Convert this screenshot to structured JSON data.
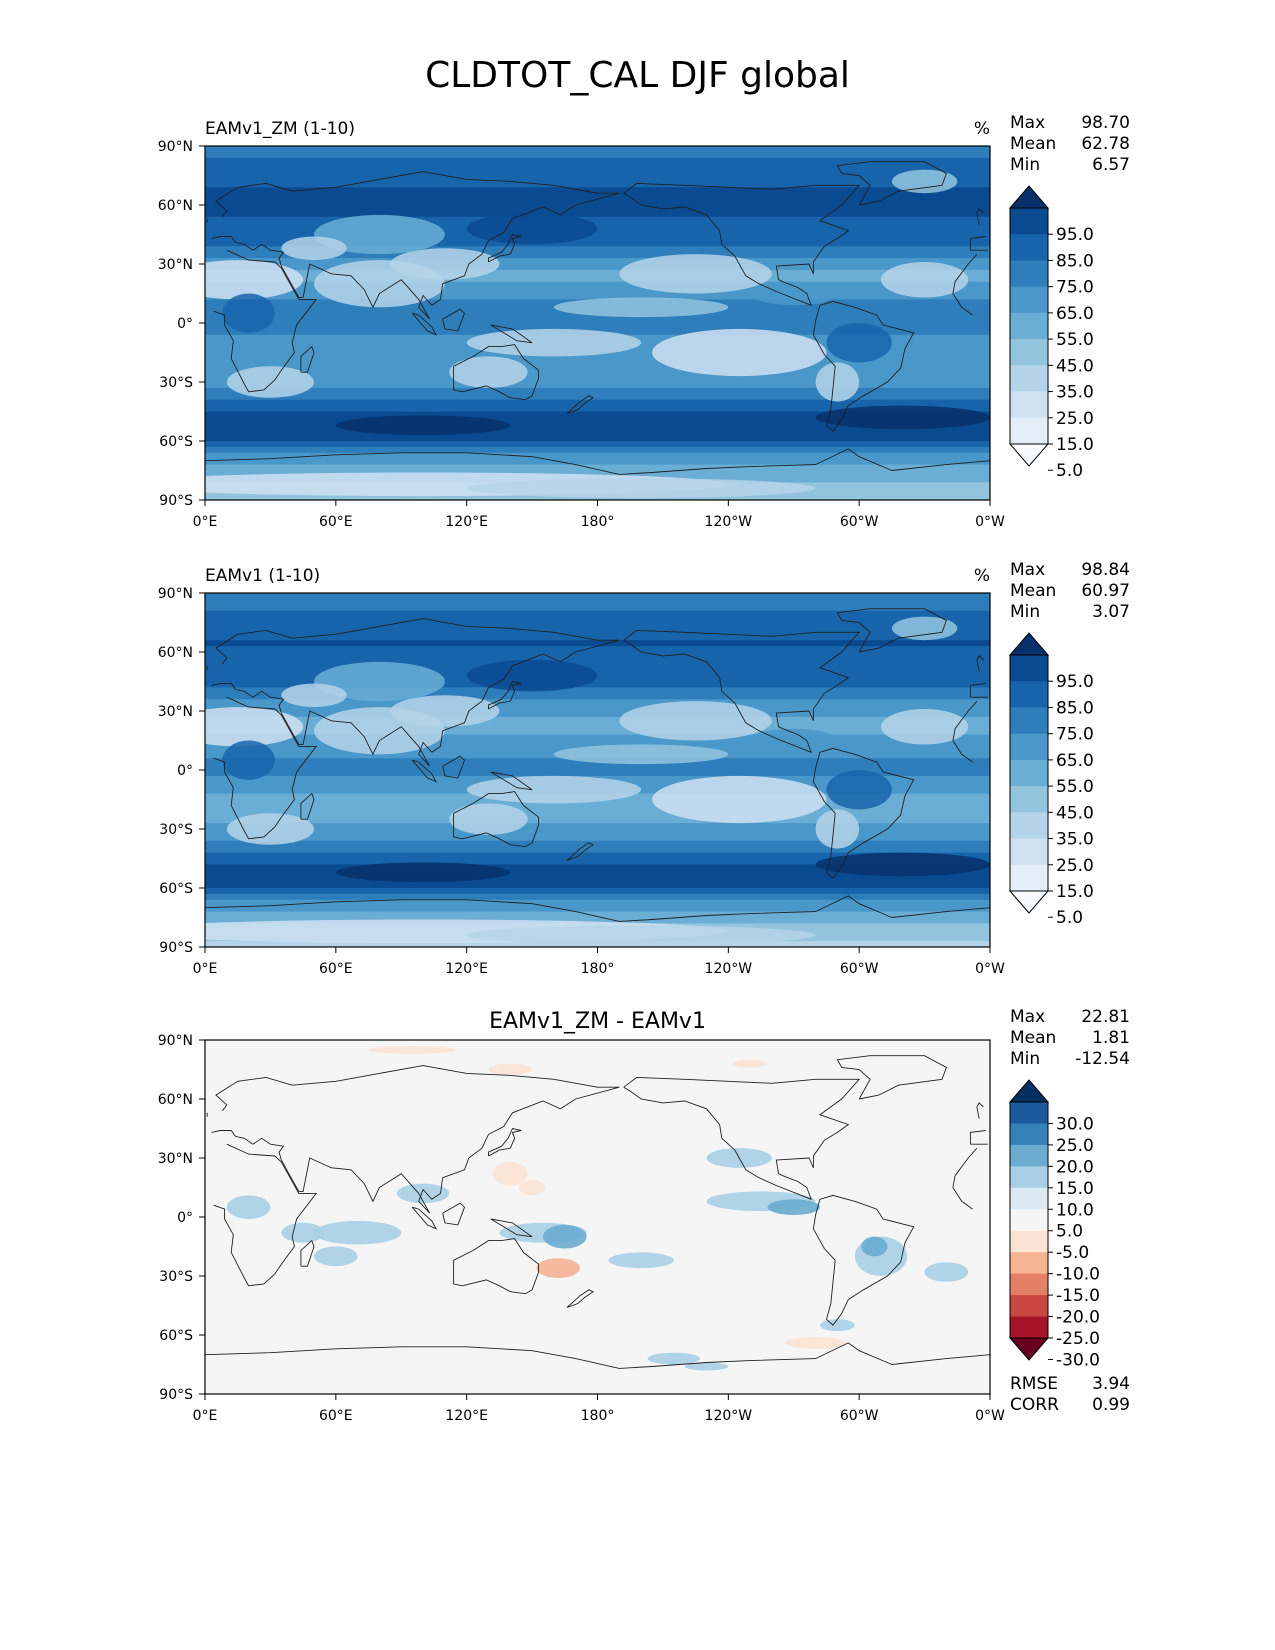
{
  "title": "CLDTOT_CAL DJF global",
  "colors": {
    "blues": [
      "#f7fbff",
      "#e3eef9",
      "#cfe1f2",
      "#b5d4e9",
      "#93c4de",
      "#6aaed6",
      "#4a98c9",
      "#2e7ebc",
      "#1764ab",
      "#0a4a90",
      "#08306b"
    ],
    "diff": [
      "#67001f",
      "#a51429",
      "#cb4741",
      "#e48066",
      "#f6b394",
      "#fbe3d4",
      "#f5f5f5",
      "#dbeaf2",
      "#a9cfe5",
      "#6bacd0",
      "#3581b9",
      "#1b5a9e",
      "#053061"
    ],
    "ocean_base": "#6aaed6",
    "diff_base": "#f5f5f5",
    "coast": "#202020"
  },
  "chart_data": [
    {
      "type": "heatmap",
      "panel_title": "EAMv1_ZM (1-10)",
      "units": "%",
      "stats": [
        {
          "label": "Max",
          "value": "98.70"
        },
        {
          "label": "Mean",
          "value": "62.78"
        },
        {
          "label": "Min",
          "value": "6.57"
        }
      ],
      "colorbar_levels": [
        "95.0",
        "85.0",
        "75.0",
        "65.0",
        "55.0",
        "45.0",
        "35.0",
        "25.0",
        "15.0",
        "5.0"
      ],
      "colormap": "blues",
      "xlim": [
        0,
        360
      ],
      "ylim": [
        -90,
        90
      ],
      "xticks": [
        "0°E",
        "60°E",
        "120°E",
        "180°",
        "120°W",
        "60°W",
        "0°W"
      ],
      "yticks": [
        "90°N",
        "60°N",
        "30°N",
        "0°",
        "30°S",
        "60°S",
        "90°S"
      ],
      "zonal_pattern": [
        {
          "lat": 90,
          "v": 72
        },
        {
          "lat": 65,
          "v": 88
        },
        {
          "lat": 45,
          "v": 82
        },
        {
          "lat": 25,
          "v": 52
        },
        {
          "lat": 10,
          "v": 66
        },
        {
          "lat": 0,
          "v": 72
        },
        {
          "lat": -15,
          "v": 55
        },
        {
          "lat": -30,
          "v": 58
        },
        {
          "lat": -45,
          "v": 84
        },
        {
          "lat": -58,
          "v": 93
        },
        {
          "lat": -68,
          "v": 60
        },
        {
          "lat": -90,
          "v": 34
        }
      ]
    },
    {
      "type": "heatmap",
      "panel_title": "EAMv1 (1-10)",
      "units": "%",
      "stats": [
        {
          "label": "Max",
          "value": "98.84"
        },
        {
          "label": "Mean",
          "value": "60.97"
        },
        {
          "label": "Min",
          "value": "3.07"
        }
      ],
      "colorbar_levels": [
        "95.0",
        "85.0",
        "75.0",
        "65.0",
        "55.0",
        "45.0",
        "35.0",
        "25.0",
        "15.0",
        "5.0"
      ],
      "colormap": "blues",
      "xlim": [
        0,
        360
      ],
      "ylim": [
        -90,
        90
      ],
      "xticks": [
        "0°E",
        "60°E",
        "120°E",
        "180°",
        "120°W",
        "60°W",
        "0°W"
      ],
      "yticks": [
        "90°N",
        "60°N",
        "30°N",
        "0°",
        "30°S",
        "60°S",
        "90°S"
      ],
      "zonal_pattern": [
        {
          "lat": 90,
          "v": 70
        },
        {
          "lat": 65,
          "v": 86
        },
        {
          "lat": 45,
          "v": 80
        },
        {
          "lat": 25,
          "v": 50
        },
        {
          "lat": 10,
          "v": 62
        },
        {
          "lat": 0,
          "v": 68
        },
        {
          "lat": -15,
          "v": 52
        },
        {
          "lat": -30,
          "v": 56
        },
        {
          "lat": -45,
          "v": 83
        },
        {
          "lat": -58,
          "v": 92
        },
        {
          "lat": -68,
          "v": 58
        },
        {
          "lat": -90,
          "v": 33
        }
      ]
    },
    {
      "type": "heatmap",
      "panel_title": "EAMv1_ZM - EAMv1",
      "units": "",
      "stats": [
        {
          "label": "Max",
          "value": "22.81"
        },
        {
          "label": "Mean",
          "value": "1.81"
        },
        {
          "label": "Min",
          "value": "-12.54"
        }
      ],
      "colorbar_levels": [
        "30.0",
        "25.0",
        "20.0",
        "15.0",
        "10.0",
        "5.0",
        "-5.0",
        "-10.0",
        "-15.0",
        "-20.0",
        "-25.0",
        "-30.0"
      ],
      "colormap": "diff",
      "metrics": [
        {
          "label": "RMSE",
          "value": "3.94"
        },
        {
          "label": "CORR",
          "value": "0.99"
        }
      ],
      "xlim": [
        0,
        360
      ],
      "ylim": [
        -90,
        90
      ],
      "xticks": [
        "0°E",
        "60°E",
        "120°E",
        "180°",
        "120°W",
        "60°W",
        "0°W"
      ],
      "yticks": [
        "90°N",
        "60°N",
        "30°N",
        "0°",
        "30°S",
        "60°S",
        "90°S"
      ]
    }
  ]
}
